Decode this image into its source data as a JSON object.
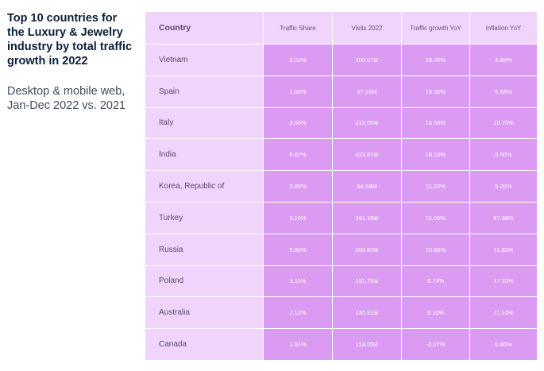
{
  "sidebar": {
    "title": "Top 10 countries for the Luxury & Jewelry industry by total traffic growth in 2022",
    "subtitle": "Desktop & mobile web, Jan-Dec 2022 vs. 2021"
  },
  "chart_data": {
    "type": "table",
    "columns": [
      "Country",
      "Traffic Share",
      "Visits 2022",
      "Traffic growth YoY",
      "Inflation YoY"
    ],
    "rows": [
      [
        "Vietnam",
        "3.24%",
        "200.07M",
        "29.40%",
        "4.89%"
      ],
      [
        "Spain",
        "1.58%",
        "97.25M",
        "19.30%",
        "5.89%"
      ],
      [
        "Italy",
        "3.46%",
        "213.09M",
        "16.56%",
        "10.70%"
      ],
      [
        "India",
        "6.87%",
        "423.81M",
        "18.10%",
        "6.50%"
      ],
      [
        "Korea, Republic of",
        "0.89%",
        "54.58M",
        "11.32%",
        "5.20%"
      ],
      [
        "Turkey",
        "3.10%",
        "191.18M",
        "11.05%",
        "57.68%"
      ],
      [
        "Russia",
        "5.85%",
        "360.82M",
        "10.85%",
        "11.80%"
      ],
      [
        "Poland",
        "3.11%",
        "191.75M",
        "9.73%",
        "17.20%"
      ],
      [
        "Australia",
        "2.12%",
        "130.91M",
        "9.10%",
        "11.10%"
      ],
      [
        "Canada",
        "1.91%",
        "118.05M",
        "-3.07%",
        "5.90%"
      ]
    ]
  },
  "colors": {
    "header_bg": "#f1d4fb",
    "value_cell_bg": "#dc9bf3",
    "title_text": "#0b1f3a"
  }
}
